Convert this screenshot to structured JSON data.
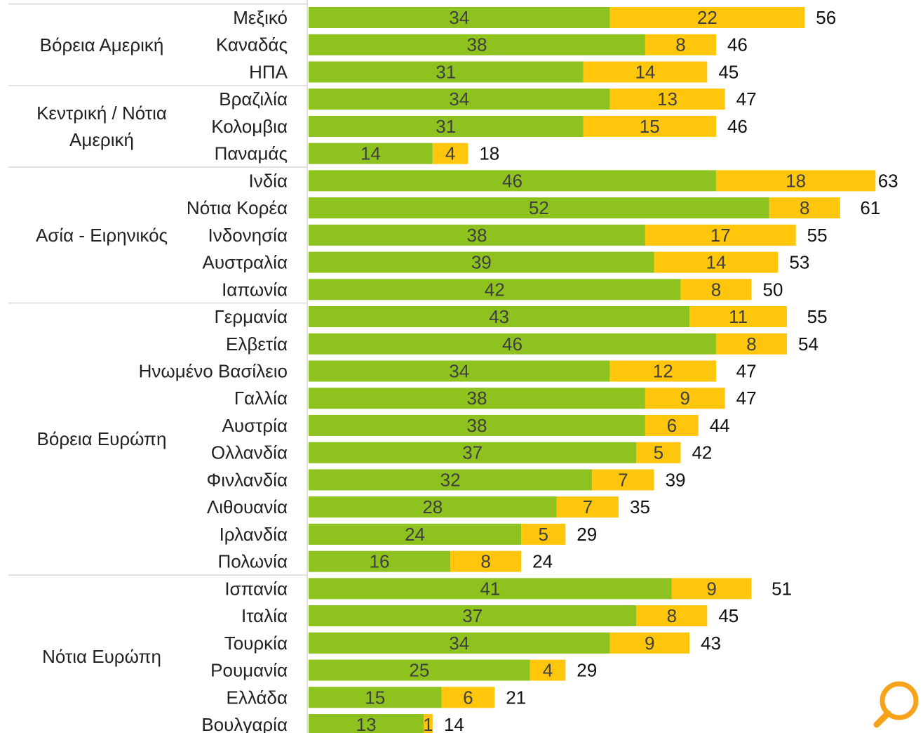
{
  "chart_data": {
    "type": "bar",
    "orientation": "horizontal",
    "stacked": true,
    "groups": [
      {
        "label": "Βόρεια Αμερική",
        "categories": [
          "Μεξικό",
          "Καναδάς",
          "ΗΠΑ"
        ]
      },
      {
        "label": "Κεντρική / Νότια Αμερική",
        "categories": [
          "Βραζιλία",
          "Κολομβια",
          "Παναμάς"
        ]
      },
      {
        "label": "Ασία - Ειρηνικός",
        "categories": [
          "Ινδία",
          "Νότια Κορέα",
          "Ινδονησία",
          "Αυστραλία",
          "Ιαπωνία"
        ]
      },
      {
        "label": "Βόρεια Ευρώπη",
        "categories": [
          "Γερμανία",
          "Ελβετία",
          "Ηνωμένο Βασίλειο",
          "Γαλλία",
          "Αυστρία",
          "Ολλανδία",
          "Φινλανδία",
          "Λιθουανία",
          "Ιρλανδία",
          "Πολωνία"
        ]
      },
      {
        "label": "Νότια Ευρώπη",
        "categories": [
          "Ισπανία",
          "Ιταλία",
          "Τουρκία",
          "Ρουμανία",
          "Ελλάδα",
          "Βουλγαρία"
        ]
      }
    ],
    "series": [
      {
        "color": "#8dc21f",
        "values": [
          34,
          38,
          31,
          34,
          31,
          14,
          46,
          52,
          38,
          39,
          42,
          43,
          46,
          34,
          38,
          38,
          37,
          32,
          28,
          24,
          16,
          41,
          37,
          34,
          25,
          15,
          13
        ]
      },
      {
        "color": "#ffc60b",
        "values": [
          22,
          8,
          14,
          13,
          15,
          4,
          18,
          8,
          17,
          14,
          8,
          11,
          8,
          12,
          9,
          6,
          5,
          7,
          7,
          5,
          8,
          9,
          8,
          9,
          4,
          6,
          1
        ]
      }
    ],
    "totals": [
      56,
      46,
      45,
      47,
      46,
      18,
      63,
      61,
      55,
      53,
      50,
      55,
      54,
      47,
      47,
      44,
      42,
      39,
      35,
      29,
      24,
      51,
      45,
      43,
      29,
      21,
      14
    ]
  }
}
